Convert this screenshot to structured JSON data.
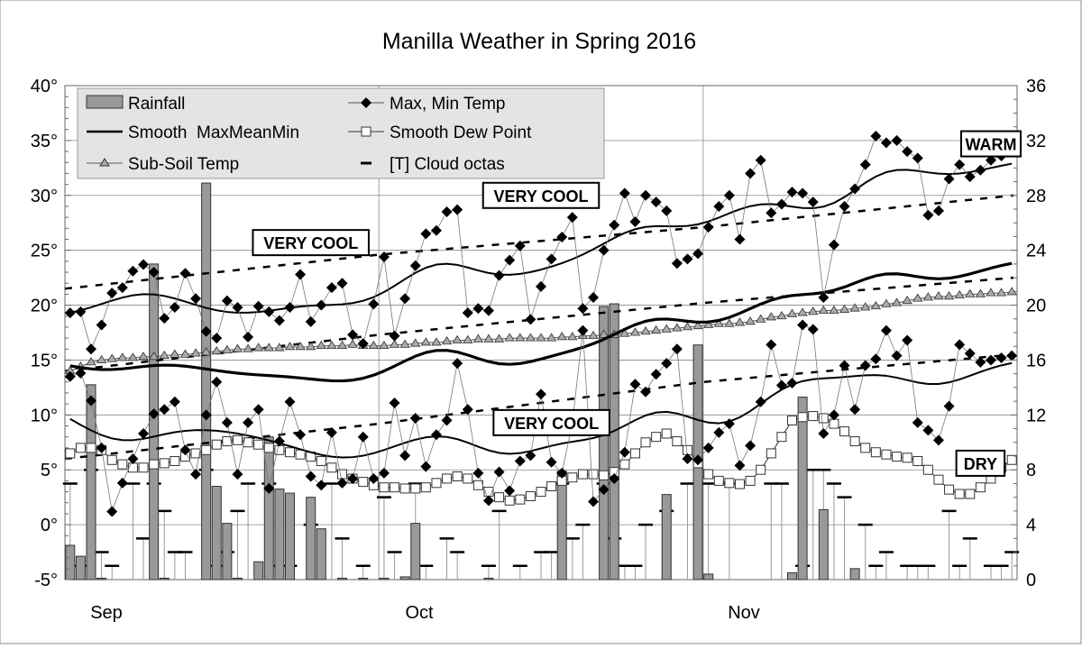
{
  "chart_data": {
    "type": "line",
    "title": "Manilla Weather in Spring 2016",
    "left_axis": {
      "range": [
        -5,
        40
      ],
      "ticks": [
        "40°",
        "35°",
        "30°",
        "25°",
        "20°",
        "15°",
        "10°",
        "5°",
        "0°",
        "-5°"
      ],
      "values": [
        40,
        35,
        30,
        25,
        20,
        15,
        10,
        5,
        0,
        -5
      ]
    },
    "right_axis": {
      "range": [
        0,
        36
      ],
      "ticks": [
        "36",
        "32",
        "28",
        "24",
        "20",
        "16",
        "12",
        "8",
        "4",
        "0"
      ],
      "values": [
        36,
        32,
        28,
        24,
        20,
        16,
        12,
        8,
        4,
        0
      ]
    },
    "x_axis": {
      "labels": [
        "Sep",
        "Oct",
        "Nov"
      ],
      "start": "2016-09-01",
      "end": "2016-11-30"
    },
    "grid": true,
    "legend": {
      "placement": "top-left",
      "items": [
        "Rainfall",
        "Max, Min Temp",
        "Smooth  MaxMeanMin",
        "Smooth Dew Point",
        "Sub-Soil Temp",
        "[T] Cloud octas"
      ]
    },
    "annotations": [
      {
        "text": "VERY COOL",
        "date": "2016-09-24",
        "temp": 25.7
      },
      {
        "text": "VERY COOL",
        "date": "2016-10-16",
        "temp": 30.0
      },
      {
        "text": "VERY COOL",
        "date": "2016-10-17",
        "temp": 9.3
      },
      {
        "text": "WARM",
        "date": "2016-11-28",
        "temp": 34.7
      },
      {
        "text": "DRY",
        "date": "2016-11-27",
        "temp": 5.6
      }
    ],
    "series": {
      "max_temp": [
        19.3,
        19.4,
        16.0,
        18.2,
        21.1,
        21.6,
        23.1,
        23.7,
        23.0,
        18.8,
        19.8,
        22.9,
        20.6,
        17.6,
        17.0,
        20.4,
        19.8,
        17.1,
        19.9,
        19.4,
        18.6,
        19.8,
        22.8,
        18.5,
        20.0,
        21.6,
        22.0,
        17.3,
        16.5,
        20.1,
        24.4,
        17.2,
        20.6,
        23.6,
        26.5,
        26.8,
        28.5,
        28.7,
        19.3,
        19.7,
        19.5,
        22.7,
        24.1,
        25.4,
        18.7,
        21.7,
        24.2,
        26.2,
        28.0,
        19.7,
        20.7,
        25.0,
        27.3,
        30.2,
        27.6,
        30.0,
        29.4,
        28.6,
        23.8,
        24.2,
        24.7,
        27.1,
        29.0,
        30.0,
        26.0,
        32.0,
        33.2,
        28.4,
        29.2,
        30.3,
        30.2,
        29.4,
        20.7,
        25.5,
        29.0,
        30.6,
        32.8,
        35.4,
        34.8,
        35.0,
        34.0,
        33.4,
        28.2,
        28.6,
        31.5,
        32.8,
        31.7,
        32.3,
        33.2,
        33.6,
        34.2
      ],
      "min_temp": [
        13.5,
        13.8,
        11.3,
        7.0,
        1.2,
        3.8,
        6.0,
        8.3,
        10.1,
        10.5,
        11.2,
        6.8,
        4.6,
        10.0,
        13.0,
        9.3,
        4.6,
        9.3,
        10.5,
        3.3,
        7.6,
        11.2,
        8.2,
        4.4,
        3.6,
        8.4,
        3.8,
        4.2,
        8.0,
        4.2,
        4.7,
        11.1,
        6.3,
        9.7,
        5.3,
        8.2,
        9.5,
        14.7,
        10.5,
        4.7,
        2.2,
        4.8,
        3.1,
        5.8,
        6.3,
        11.9,
        5.7,
        4.7,
        9.3,
        17.7,
        2.1,
        3.2,
        4.2,
        6.6,
        12.8,
        12.1,
        13.7,
        14.7,
        16.0,
        6.0,
        5.9,
        7.0,
        8.4,
        9.2,
        5.4,
        7.2,
        11.2,
        16.4,
        12.7,
        12.9,
        18.2,
        17.8,
        8.3,
        10.0,
        14.5,
        10.5,
        14.5,
        15.1,
        17.7,
        15.4,
        16.8,
        9.3,
        8.6,
        7.7,
        10.8,
        16.4,
        15.6,
        14.8,
        15.0,
        15.2,
        15.4
      ],
      "dew_point_smooth": [
        6.5,
        7.0,
        7.0,
        6.8,
        5.9,
        5.5,
        5.2,
        5.2,
        5.5,
        5.6,
        5.8,
        6.2,
        6.5,
        6.8,
        7.3,
        7.6,
        7.7,
        7.5,
        7.3,
        7.0,
        6.8,
        6.6,
        6.4,
        6.2,
        5.8,
        5.2,
        4.6,
        4.2,
        3.9,
        3.6,
        3.4,
        3.4,
        3.3,
        3.3,
        3.4,
        3.8,
        4.2,
        4.4,
        4.2,
        3.6,
        3.0,
        2.5,
        2.2,
        2.3,
        2.6,
        3.0,
        3.5,
        4.0,
        4.3,
        4.6,
        4.6,
        4.5,
        4.8,
        5.5,
        6.5,
        7.5,
        8.0,
        8.3,
        7.6,
        6.8,
        5.6,
        4.6,
        4.0,
        3.8,
        3.7,
        4.0,
        5.0,
        6.5,
        8.0,
        9.5,
        9.8,
        9.9,
        9.7,
        9.2,
        8.5,
        7.6,
        7.0,
        6.6,
        6.4,
        6.2,
        6.1,
        5.8,
        5.0,
        4.1,
        3.2,
        2.8,
        2.8,
        3.4,
        4.2,
        5.2,
        5.9
      ],
      "sub_soil_temp": [
        14.0,
        14.4,
        14.8,
        15.0,
        15.1,
        15.2,
        15.2,
        15.3,
        15.3,
        15.4,
        15.5,
        15.5,
        15.6,
        15.7,
        15.8,
        15.9,
        16.0,
        16.0,
        16.1,
        16.1,
        16.1,
        16.2,
        16.2,
        16.2,
        16.3,
        16.3,
        16.3,
        16.4,
        16.3,
        16.3,
        16.3,
        16.4,
        16.4,
        16.5,
        16.6,
        16.6,
        16.7,
        16.8,
        16.8,
        16.9,
        16.9,
        16.9,
        17.0,
        17.0,
        17.0,
        17.0,
        17.0,
        17.1,
        17.1,
        17.2,
        17.2,
        17.3,
        17.3,
        17.4,
        17.5,
        17.6,
        17.7,
        17.8,
        17.9,
        18.0,
        18.1,
        18.2,
        18.3,
        18.3,
        18.4,
        18.5,
        18.7,
        18.9,
        19.0,
        19.2,
        19.3,
        19.4,
        19.5,
        19.5,
        19.6,
        19.7,
        19.8,
        19.9,
        20.1,
        20.2,
        20.4,
        20.6,
        20.7,
        20.8,
        20.8,
        20.9,
        21.0,
        21.0,
        21.1,
        21.1,
        21.2
      ],
      "rainfall_mm": [
        2.5,
        1.7,
        14.2,
        0.1,
        0,
        0,
        0,
        0,
        23.0,
        0.1,
        0,
        0,
        0,
        28.9,
        6.8,
        4.1,
        0.1,
        0,
        1.3,
        10.4,
        6.6,
        6.3,
        0,
        6.0,
        3.7,
        0,
        0.1,
        0,
        0.1,
        0,
        0.1,
        0,
        0.2,
        4.1,
        0,
        0,
        0,
        0,
        0,
        0,
        0.1,
        0,
        0,
        0,
        0,
        0,
        0,
        7.9,
        0,
        0,
        0,
        19.9,
        20.1,
        0,
        0,
        0,
        0,
        6.2,
        0,
        0,
        17.1,
        0.4,
        0,
        0,
        0,
        0,
        0,
        0,
        0,
        0.5,
        13.3,
        0,
        5.1,
        0,
        0,
        0.8,
        0,
        0,
        0,
        0,
        0,
        0,
        0,
        0,
        0,
        0,
        0,
        0,
        0,
        0,
        0
      ],
      "cloud_octas": [
        7,
        1,
        8,
        2,
        1,
        0,
        7,
        3,
        7,
        5,
        2,
        2,
        0,
        8,
        1,
        2,
        5,
        7,
        0,
        7,
        1,
        1,
        0,
        4,
        0,
        7,
        3,
        0,
        1,
        0,
        6,
        2,
        0,
        7,
        1,
        0,
        3,
        2,
        0,
        0,
        1,
        5,
        0,
        1,
        0,
        2,
        2,
        7,
        3,
        4,
        0,
        7,
        3,
        1,
        1,
        4,
        0,
        5,
        0,
        7,
        0,
        7,
        0,
        7,
        0,
        0,
        0,
        7,
        7,
        0,
        1,
        8,
        8,
        7,
        6,
        0,
        4,
        1,
        2,
        0,
        1,
        1,
        1,
        0,
        5,
        1,
        3,
        0,
        1,
        1,
        2
      ],
      "average_max": {
        "dates": [
          "2016-09-01",
          "2016-10-01",
          "2016-11-01",
          "2016-11-30"
        ],
        "values": [
          21.5,
          24.6,
          27.1,
          30.0
        ]
      },
      "average_mean": {
        "dates": [
          "2016-09-01",
          "2016-10-01",
          "2016-11-01",
          "2016-11-30"
        ],
        "values": [
          14.0,
          17.3,
          20.2,
          22.5
        ]
      },
      "average_min": {
        "dates": [
          "2016-09-01",
          "2016-10-01",
          "2016-11-01",
          "2016-11-30"
        ],
        "values": [
          6.0,
          9.2,
          13.0,
          15.5
        ]
      }
    },
    "colors": {
      "rain_fill": "#999999",
      "legend_bg": "#e4e4e4",
      "sub_soil_fill": "#aaaaaa",
      "grid": "#888888"
    }
  }
}
